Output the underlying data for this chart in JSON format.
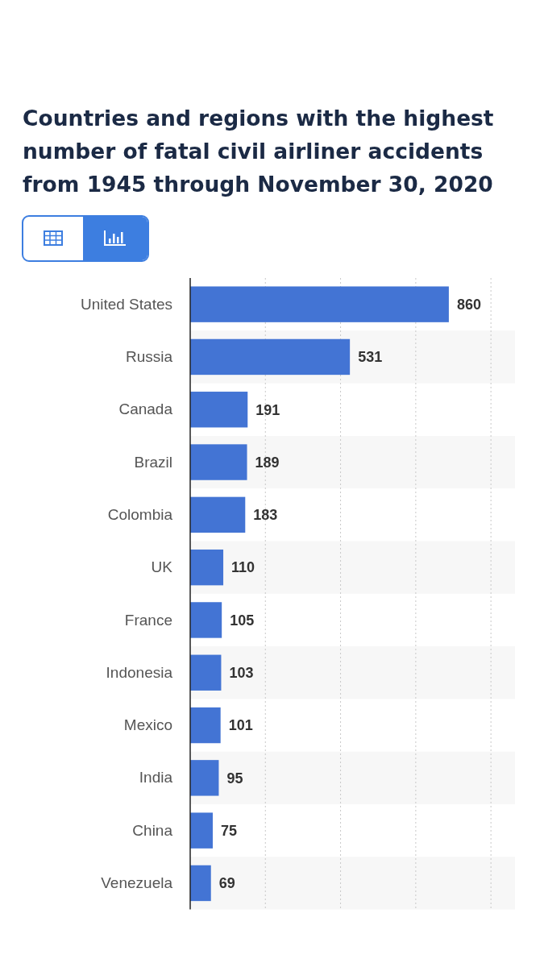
{
  "chart_data": {
    "type": "bar",
    "orientation": "horizontal",
    "title": "Countries and regions with the highest number of fatal civil airliner accidents from 1945 through November 30, 2020",
    "categories": [
      "United States",
      "Russia",
      "Canada",
      "Brazil",
      "Colombia",
      "UK",
      "France",
      "Indonesia",
      "Mexico",
      "India",
      "China",
      "Venezuela"
    ],
    "values": [
      860,
      531,
      191,
      189,
      183,
      110,
      105,
      103,
      101,
      95,
      75,
      69
    ],
    "color": "#4374d4",
    "xlim": [
      0,
      1080
    ],
    "xticks": [
      {
        "value": 250,
        "label": null
      },
      {
        "value": 500,
        "label": null
      },
      {
        "value": 750,
        "label": null
      },
      {
        "value": 1000,
        "label": null
      }
    ],
    "tick_labels": "y",
    "grid": "x",
    "data_labels": true
  }
}
